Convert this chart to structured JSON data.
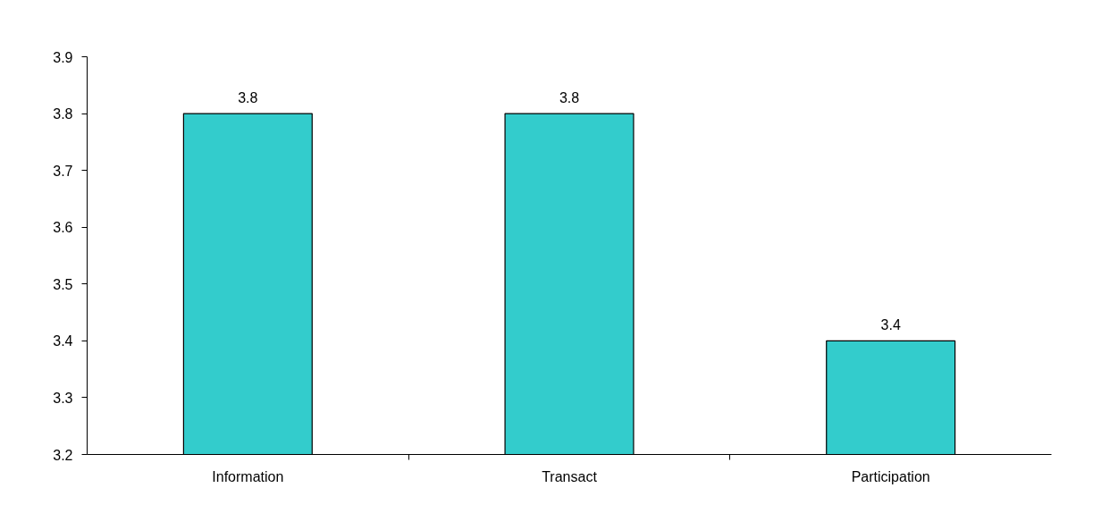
{
  "chart_data": {
    "type": "bar",
    "categories": [
      "Information",
      "Transact",
      "Participation"
    ],
    "values": [
      3.8,
      3.8,
      3.4
    ],
    "color": "#33cccc",
    "ylim": [
      3.2,
      3.9
    ],
    "yticks": [
      3.2,
      3.3,
      3.4,
      3.5,
      3.6,
      3.7,
      3.8,
      3.9
    ],
    "data_labels": true,
    "grid": false
  }
}
